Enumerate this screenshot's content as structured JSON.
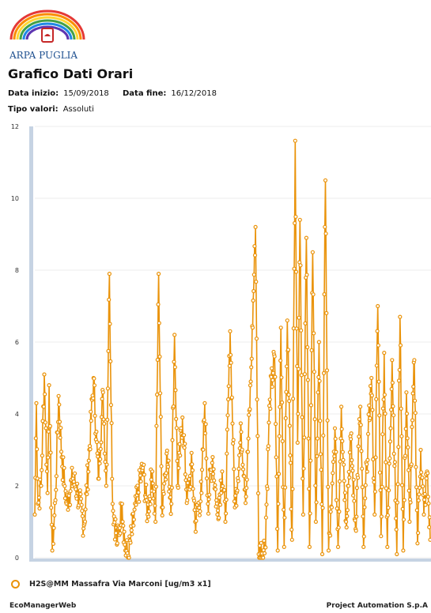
{
  "header": {
    "org_name": "ARPA PUGLIA",
    "title": "Grafico Dati Orari",
    "start_label": "Data inizio:",
    "start_value": "15/09/2018",
    "end_label": "Data fine:",
    "end_value": "16/12/2018",
    "type_label": "Tipo valori:",
    "type_value": "Assoluti"
  },
  "colors": {
    "series": "#ea930a",
    "axis": "#c6d3e3",
    "grid": "#eeeeee"
  },
  "chart_data": {
    "type": "line",
    "title": "",
    "xlabel": "",
    "ylabel": "",
    "ylim": [
      0,
      12
    ],
    "yticks": [
      "0",
      "2",
      "4",
      "6",
      "8",
      "10",
      "12"
    ],
    "grid": true,
    "legend": "bottom-left",
    "series": [
      {
        "name": "H2S@MM Massafra Via Marconi [ug/m3 x1]",
        "markers": "hollow-circle",
        "keypoints": [
          [
            0,
            1.2
          ],
          [
            2,
            4.3
          ],
          [
            4,
            1.5
          ],
          [
            8,
            2.0
          ],
          [
            12,
            5.1
          ],
          [
            16,
            1.8
          ],
          [
            18,
            4.8
          ],
          [
            22,
            0.2
          ],
          [
            26,
            1.6
          ],
          [
            30,
            4.5
          ],
          [
            34,
            2.8
          ],
          [
            40,
            1.5
          ],
          [
            48,
            2.2
          ],
          [
            54,
            1.8
          ],
          [
            62,
            0.9
          ],
          [
            68,
            2.7
          ],
          [
            74,
            5.0
          ],
          [
            80,
            2.2
          ],
          [
            86,
            4.6
          ],
          [
            90,
            2.0
          ],
          [
            94,
            7.9
          ],
          [
            98,
            1.5
          ],
          [
            104,
            0.4
          ],
          [
            110,
            1.5
          ],
          [
            114,
            0.2
          ],
          [
            118,
            0.05
          ],
          [
            130,
            1.8
          ],
          [
            136,
            2.5
          ],
          [
            142,
            1.2
          ],
          [
            148,
            2.4
          ],
          [
            152,
            1.0
          ],
          [
            156,
            7.9
          ],
          [
            160,
            1.4
          ],
          [
            166,
            2.9
          ],
          [
            172,
            1.5
          ],
          [
            176,
            6.2
          ],
          [
            180,
            2.0
          ],
          [
            186,
            3.9
          ],
          [
            192,
            1.6
          ],
          [
            198,
            2.6
          ],
          [
            202,
            1.0
          ],
          [
            210,
            1.8
          ],
          [
            214,
            4.3
          ],
          [
            218,
            1.5
          ],
          [
            224,
            2.8
          ],
          [
            230,
            1.2
          ],
          [
            236,
            2.4
          ],
          [
            240,
            1.0
          ],
          [
            246,
            6.3
          ],
          [
            252,
            1.4
          ],
          [
            260,
            3.5
          ],
          [
            266,
            1.7
          ],
          [
            272,
            4.9
          ],
          [
            278,
            9.2
          ],
          [
            282,
            0.1
          ],
          [
            290,
            0.3
          ],
          [
            296,
            4.4
          ],
          [
            302,
            5.6
          ],
          [
            306,
            0.2
          ],
          [
            310,
            6.4
          ],
          [
            314,
            0.3
          ],
          [
            318,
            6.6
          ],
          [
            324,
            0.5
          ],
          [
            328,
            11.6
          ],
          [
            331,
            3.2
          ],
          [
            334,
            9.4
          ],
          [
            338,
            1.2
          ],
          [
            342,
            8.9
          ],
          [
            346,
            0.3
          ],
          [
            350,
            8.5
          ],
          [
            354,
            1.0
          ],
          [
            358,
            6.0
          ],
          [
            362,
            0.1
          ],
          [
            366,
            10.5
          ],
          [
            370,
            0.2
          ],
          [
            374,
            1.4
          ],
          [
            378,
            3.6
          ],
          [
            382,
            0.3
          ],
          [
            386,
            4.2
          ],
          [
            392,
            1.0
          ],
          [
            398,
            3.3
          ],
          [
            404,
            0.8
          ],
          [
            410,
            4.2
          ],
          [
            414,
            0.3
          ],
          [
            418,
            2.6
          ],
          [
            424,
            5.0
          ],
          [
            428,
            1.2
          ],
          [
            432,
            7.0
          ],
          [
            436,
            0.6
          ],
          [
            440,
            5.7
          ],
          [
            444,
            0.3
          ],
          [
            450,
            5.5
          ],
          [
            456,
            0.1
          ],
          [
            460,
            6.7
          ],
          [
            464,
            0.2
          ],
          [
            468,
            4.6
          ],
          [
            472,
            1.0
          ],
          [
            478,
            5.5
          ],
          [
            482,
            0.4
          ],
          [
            486,
            3.0
          ],
          [
            490,
            1.2
          ],
          [
            494,
            2.4
          ],
          [
            498,
            0.5
          ]
        ]
      }
    ]
  },
  "legend": {
    "label": "H2S@MM Massafra Via Marconi [ug/m3 x1]"
  },
  "footer": {
    "left": "EcoManagerWeb",
    "right": "Project Automation S.p.A"
  }
}
